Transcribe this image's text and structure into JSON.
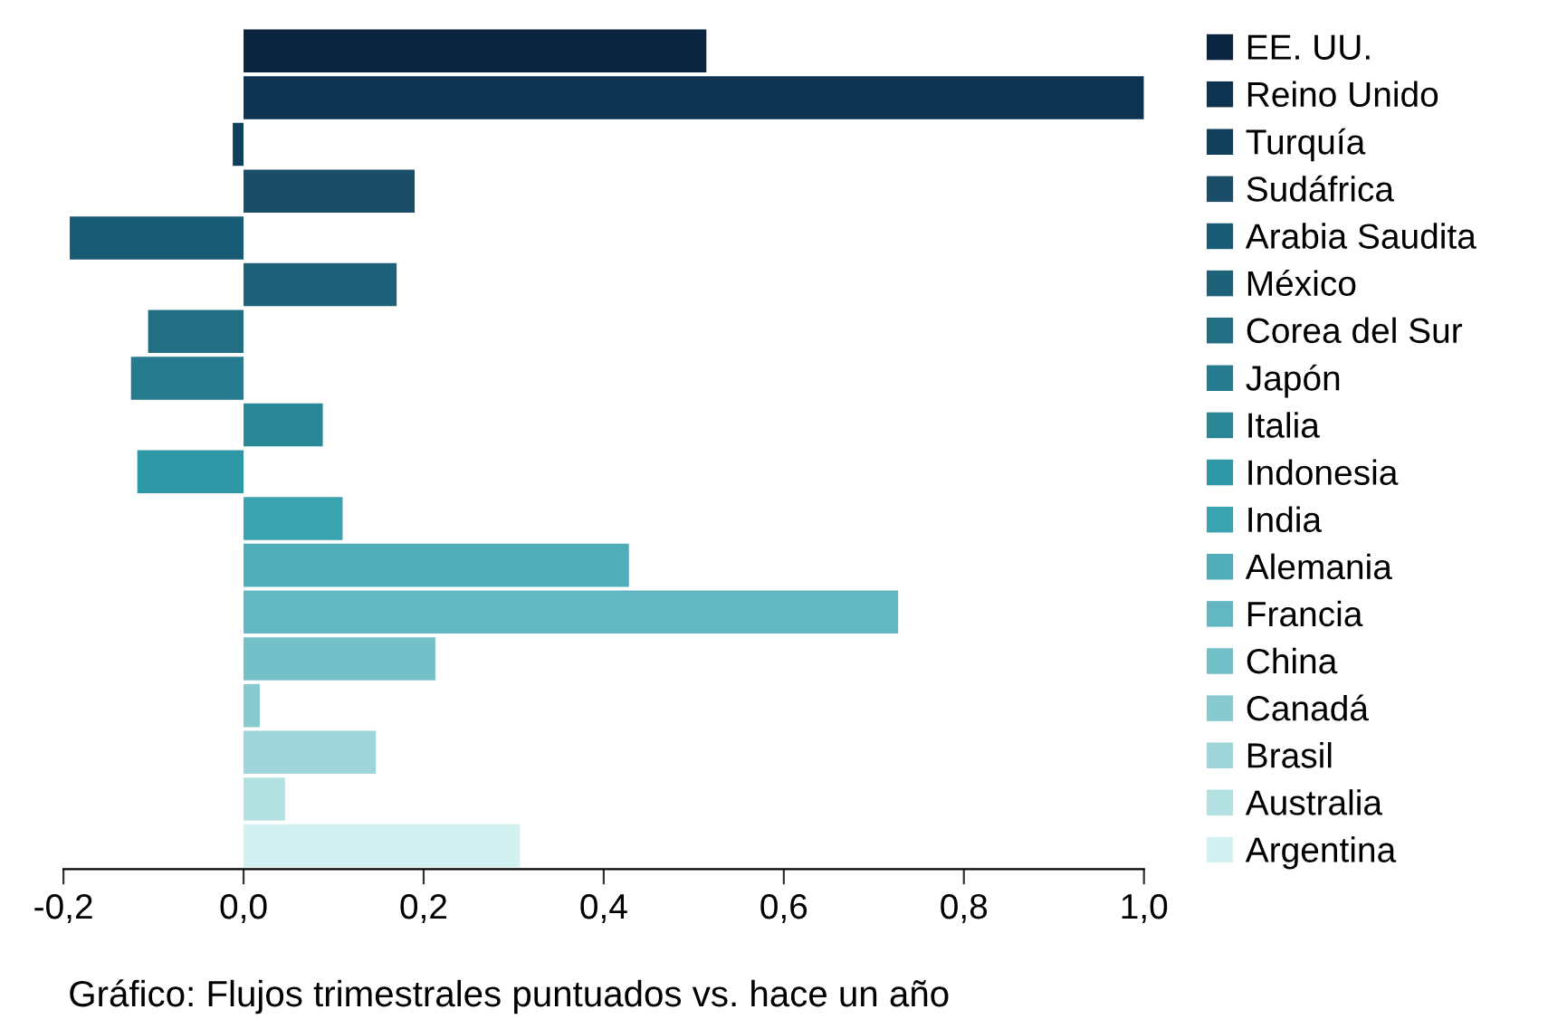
{
  "chart_data": {
    "type": "bar",
    "orientation": "horizontal",
    "stacked": true,
    "categories": [
      null,
      null,
      null,
      null,
      null,
      null,
      null,
      null,
      null,
      null,
      null,
      null,
      null,
      null,
      null,
      null,
      null,
      null
    ],
    "series": [
      {
        "name": "EE. UU.",
        "color": "#0b2540",
        "values": [
          0.514,
          null,
          null,
          null,
          null,
          null,
          null,
          null,
          null,
          null,
          null,
          null,
          null,
          null,
          null,
          null,
          null,
          null
        ]
      },
      {
        "name": "Reino Unido",
        "color": "#0e3350",
        "values": [
          null,
          1.0,
          null,
          null,
          null,
          null,
          null,
          null,
          null,
          null,
          null,
          null,
          null,
          null,
          null,
          null,
          null,
          null
        ]
      },
      {
        "name": "Turquía",
        "color": "#10405c",
        "values": [
          null,
          null,
          -0.012,
          null,
          null,
          null,
          null,
          null,
          null,
          null,
          null,
          null,
          null,
          null,
          null,
          null,
          null,
          null
        ]
      },
      {
        "name": "Sudáfrica",
        "color": "#1a4d68",
        "values": [
          null,
          null,
          null,
          0.19,
          null,
          null,
          null,
          null,
          null,
          null,
          null,
          null,
          null,
          null,
          null,
          null,
          null,
          null
        ]
      },
      {
        "name": "Arabia Saudita",
        "color": "#165a74",
        "values": [
          null,
          null,
          null,
          null,
          -0.193,
          null,
          null,
          null,
          null,
          null,
          null,
          null,
          null,
          null,
          null,
          null,
          null,
          null
        ]
      },
      {
        "name": "México",
        "color": "#1d6278",
        "values": [
          null,
          null,
          null,
          null,
          null,
          0.17,
          null,
          null,
          null,
          null,
          null,
          null,
          null,
          null,
          null,
          null,
          null,
          null
        ]
      },
      {
        "name": "Corea del Sur",
        "color": "#226f84",
        "values": [
          null,
          null,
          null,
          null,
          null,
          null,
          -0.106,
          null,
          null,
          null,
          null,
          null,
          null,
          null,
          null,
          null,
          null,
          null
        ]
      },
      {
        "name": "Japón",
        "color": "#267b8e",
        "values": [
          null,
          null,
          null,
          null,
          null,
          null,
          null,
          -0.125,
          null,
          null,
          null,
          null,
          null,
          null,
          null,
          null,
          null,
          null
        ]
      },
      {
        "name": "Italia",
        "color": "#2a8896",
        "values": [
          null,
          null,
          null,
          null,
          null,
          null,
          null,
          null,
          0.088,
          null,
          null,
          null,
          null,
          null,
          null,
          null,
          null,
          null
        ]
      },
      {
        "name": "Indonesia",
        "color": "#2e98a6",
        "values": [
          null,
          null,
          null,
          null,
          null,
          null,
          null,
          null,
          null,
          -0.118,
          null,
          null,
          null,
          null,
          null,
          null,
          null,
          null
        ]
      },
      {
        "name": "India",
        "color": "#3aa3b0",
        "values": [
          null,
          null,
          null,
          null,
          null,
          null,
          null,
          null,
          null,
          null,
          0.11,
          null,
          null,
          null,
          null,
          null,
          null,
          null
        ]
      },
      {
        "name": "Alemania",
        "color": "#4eadb9",
        "values": [
          null,
          null,
          null,
          null,
          null,
          null,
          null,
          null,
          null,
          null,
          null,
          0.428,
          null,
          null,
          null,
          null,
          null,
          null
        ]
      },
      {
        "name": "Francia",
        "color": "#62b7c2",
        "values": [
          null,
          null,
          null,
          null,
          null,
          null,
          null,
          null,
          null,
          null,
          null,
          null,
          0.727,
          null,
          null,
          null,
          null,
          null
        ]
      },
      {
        "name": "China",
        "color": "#72c0c8",
        "values": [
          null,
          null,
          null,
          null,
          null,
          null,
          null,
          null,
          null,
          null,
          null,
          null,
          null,
          0.213,
          null,
          null,
          null,
          null
        ]
      },
      {
        "name": "Canadá",
        "color": "#87cad0",
        "values": [
          null,
          null,
          null,
          null,
          null,
          null,
          null,
          null,
          null,
          null,
          null,
          null,
          null,
          null,
          0.018,
          null,
          null,
          null
        ]
      },
      {
        "name": "Brasil",
        "color": "#9dd5d8",
        "values": [
          null,
          null,
          null,
          null,
          null,
          null,
          null,
          null,
          null,
          null,
          null,
          null,
          null,
          null,
          null,
          0.147,
          null,
          null
        ]
      },
      {
        "name": "Australia",
        "color": "#b3e0e1",
        "values": [
          null,
          null,
          null,
          null,
          null,
          null,
          null,
          null,
          null,
          null,
          null,
          null,
          null,
          null,
          null,
          null,
          0.046,
          null
        ]
      },
      {
        "name": "Argentina",
        "color": "#d2f1f0",
        "values": [
          null,
          null,
          null,
          null,
          null,
          null,
          null,
          null,
          null,
          null,
          null,
          null,
          null,
          null,
          null,
          null,
          null,
          0.307
        ]
      }
    ],
    "xlim": [
      -0.2,
      1.0
    ],
    "xticks": [
      {
        "value": -0.2,
        "label": "-0,2"
      },
      {
        "value": 0,
        "label": "0,0"
      },
      {
        "value": 0.2,
        "label": "0,2"
      },
      {
        "value": 0.4,
        "label": "0,4"
      },
      {
        "value": 0.6,
        "label": "0,6"
      },
      {
        "value": 0.8,
        "label": "0,8"
      },
      {
        "value": 1.0,
        "label": "1,0"
      }
    ],
    "tick_labels": "x",
    "grid": false,
    "legend": "right",
    "annotations": [
      "Gráfico: Flujos trimestrales puntuados vs. hace un año"
    ]
  }
}
